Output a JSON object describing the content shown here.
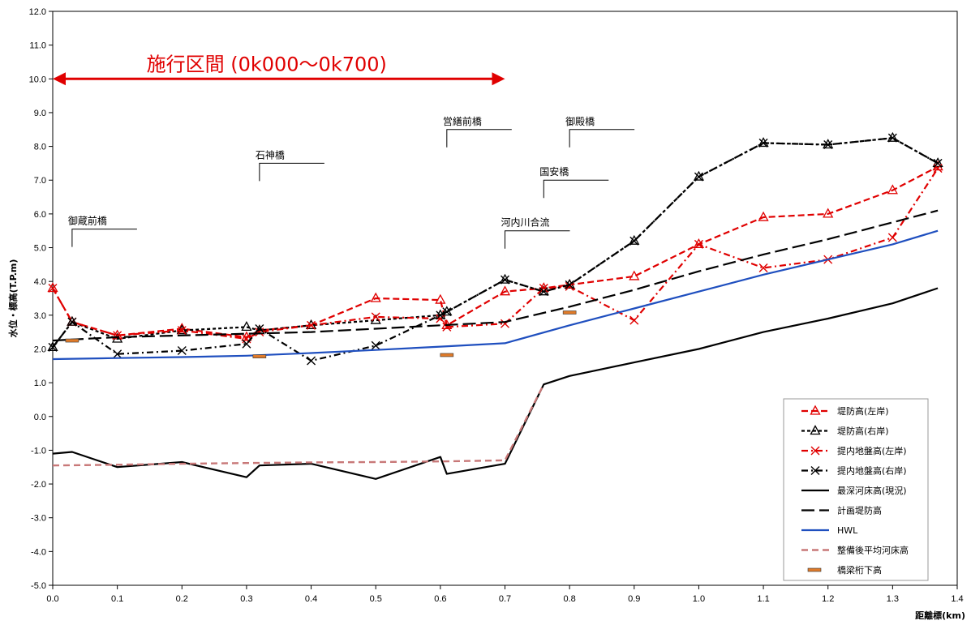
{
  "chart_data": {
    "type": "line",
    "xlabel": "距離標(km)",
    "ylabel": "水位・標高(T.P.m)",
    "xlim": [
      0,
      1.4
    ],
    "ylim": [
      -5,
      12
    ],
    "x_ticks": [
      "0.0",
      "0.1",
      "0.2",
      "0.3",
      "0.4",
      "0.5",
      "0.6",
      "0.7",
      "0.8",
      "0.9",
      "1.0",
      "1.1",
      "1.2",
      "1.3",
      "1.4"
    ],
    "y_ticks": [
      "12.0",
      "11.0",
      "10.0",
      "9.0",
      "8.0",
      "7.0",
      "6.0",
      "5.0",
      "4.0",
      "3.0",
      "2.0",
      "1.0",
      "0.0",
      "-1.0",
      "-2.0",
      "-3.0",
      "-4.0",
      "-5.0"
    ],
    "grid": false,
    "legend_position": "bottom-right",
    "annotation": {
      "text": "施行区間 (0k000～0k700)",
      "x_start": 0.0,
      "x_end": 0.7,
      "y": 10.0,
      "color": "#e00000"
    },
    "bridges": [
      {
        "label": "御蔵前橋",
        "x": 0.03,
        "y": 5.55
      },
      {
        "label": "石神橋",
        "x": 0.32,
        "y": 7.5
      },
      {
        "label": "営繕前橋",
        "x": 0.61,
        "y": 8.5
      },
      {
        "label": "御殿橋",
        "x": 0.8,
        "y": 8.5
      },
      {
        "label": "国安橋",
        "x": 0.76,
        "y": 7.0
      },
      {
        "label": "河内川合流",
        "x": 0.7,
        "y": 5.5
      }
    ],
    "series": [
      {
        "name": "堤防高(左岸)",
        "color": "#e00000",
        "dash": "8,4",
        "width": 2.2,
        "marker": "triangle",
        "x": [
          0.0,
          0.03,
          0.1,
          0.2,
          0.3,
          0.32,
          0.4,
          0.5,
          0.6,
          0.61,
          0.7,
          0.76,
          0.8,
          0.9,
          1.0,
          1.1,
          1.2,
          1.3,
          1.37
        ],
        "y": [
          3.8,
          2.8,
          2.4,
          2.6,
          2.35,
          2.55,
          2.7,
          3.5,
          3.45,
          2.7,
          3.7,
          3.8,
          3.9,
          4.15,
          5.1,
          5.9,
          6.0,
          6.7,
          7.4
        ]
      },
      {
        "name": "堤防高(右岸)",
        "color": "#000000",
        "dash": "4,3",
        "width": 2.2,
        "marker": "triangle",
        "x": [
          0.0,
          0.03,
          0.1,
          0.2,
          0.3,
          0.32,
          0.4,
          0.5,
          0.6,
          0.61,
          0.7,
          0.76,
          0.8,
          0.9,
          1.0,
          1.1,
          1.2,
          1.3,
          1.37
        ],
        "y": [
          2.05,
          2.8,
          2.3,
          2.55,
          2.65,
          2.55,
          2.7,
          2.85,
          3.0,
          3.1,
          4.05,
          3.7,
          3.9,
          5.2,
          7.1,
          8.1,
          8.05,
          8.25,
          7.5
        ]
      },
      {
        "name": "提内地盤高(左岸)",
        "color": "#e00000",
        "dash": "8,4,2,4",
        "width": 2.2,
        "marker": "x",
        "x": [
          0.0,
          0.03,
          0.1,
          0.2,
          0.3,
          0.32,
          0.4,
          0.5,
          0.6,
          0.61,
          0.7,
          0.76,
          0.8,
          0.9,
          1.0,
          1.1,
          1.2,
          1.3,
          1.37
        ],
        "y": [
          3.8,
          2.8,
          2.4,
          2.55,
          2.3,
          2.5,
          2.7,
          2.95,
          2.9,
          2.65,
          2.75,
          3.8,
          3.85,
          2.85,
          5.1,
          4.4,
          4.65,
          5.3,
          7.35
        ]
      },
      {
        "name": "提内地盤高(右岸)",
        "color": "#000000",
        "dash": "8,4,2,4",
        "width": 2.2,
        "marker": "x",
        "x": [
          0.0,
          0.03,
          0.1,
          0.2,
          0.3,
          0.32,
          0.4,
          0.5,
          0.6,
          0.61,
          0.7,
          0.76,
          0.8,
          0.9,
          1.0,
          1.1,
          1.2,
          1.3,
          1.37
        ],
        "y": [
          2.05,
          2.8,
          1.85,
          1.95,
          2.15,
          2.6,
          1.65,
          2.1,
          3.0,
          3.1,
          4.05,
          3.7,
          3.9,
          5.2,
          7.1,
          8.1,
          8.05,
          8.25,
          7.5
        ]
      },
      {
        "name": "最深河床高(現況)",
        "color": "#000000",
        "dash": "",
        "width": 2.2,
        "marker": "none",
        "x": [
          0.0,
          0.03,
          0.1,
          0.2,
          0.3,
          0.32,
          0.4,
          0.5,
          0.6,
          0.61,
          0.7,
          0.76,
          0.8,
          0.9,
          1.0,
          1.1,
          1.2,
          1.3,
          1.37
        ],
        "y": [
          -1.1,
          -1.05,
          -1.5,
          -1.35,
          -1.8,
          -1.45,
          -1.4,
          -1.85,
          -1.2,
          -1.7,
          -1.4,
          0.95,
          1.2,
          1.6,
          2.0,
          2.5,
          2.9,
          3.35,
          3.8
        ]
      },
      {
        "name": "計画堤防高",
        "color": "#000000",
        "dash": "16,6",
        "width": 2.2,
        "marker": "none",
        "x": [
          0.0,
          0.1,
          0.2,
          0.3,
          0.4,
          0.5,
          0.6,
          0.7,
          0.8,
          0.9,
          1.0,
          1.1,
          1.2,
          1.3,
          1.37
        ],
        "y": [
          2.25,
          2.35,
          2.4,
          2.45,
          2.5,
          2.6,
          2.7,
          2.8,
          3.25,
          3.75,
          4.3,
          4.8,
          5.25,
          5.75,
          6.1
        ]
      },
      {
        "name": "HWL",
        "color": "#1f4fbf",
        "dash": "",
        "width": 2.2,
        "marker": "none",
        "x": [
          0.0,
          0.1,
          0.2,
          0.3,
          0.4,
          0.5,
          0.6,
          0.7,
          0.8,
          0.9,
          1.0,
          1.1,
          1.2,
          1.3,
          1.37
        ],
        "y": [
          1.7,
          1.73,
          1.76,
          1.8,
          1.88,
          1.97,
          2.07,
          2.17,
          2.7,
          3.2,
          3.7,
          4.2,
          4.65,
          5.1,
          5.5
        ]
      },
      {
        "name": "整備後平均河床高",
        "color": "#c87878",
        "dash": "8,5",
        "width": 2.4,
        "marker": "none",
        "x": [
          0.0,
          0.1,
          0.2,
          0.3,
          0.4,
          0.5,
          0.6,
          0.7,
          0.76
        ],
        "y": [
          -1.45,
          -1.43,
          -1.4,
          -1.38,
          -1.36,
          -1.35,
          -1.33,
          -1.3,
          0.95
        ]
      },
      {
        "name": "橋梁桁下高",
        "color": "#e07b2a",
        "dash": "",
        "width": 1,
        "marker": "bar",
        "x": [
          0.03,
          0.32,
          0.61,
          0.8
        ],
        "y": [
          2.25,
          1.78,
          1.82,
          3.08
        ]
      }
    ]
  }
}
